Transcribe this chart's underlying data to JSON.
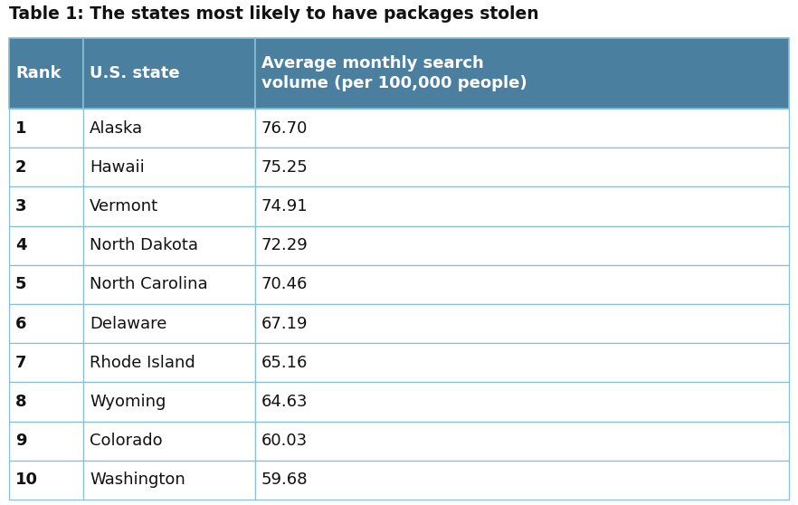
{
  "title": "Table 1: The states most likely to have packages stolen",
  "header": [
    "Rank",
    "U.S. state",
    "Average monthly search\nvolume (per 100,000 people)"
  ],
  "rows": [
    [
      "1",
      "Alaska",
      "76.70"
    ],
    [
      "2",
      "Hawaii",
      "75.25"
    ],
    [
      "3",
      "Vermont",
      "74.91"
    ],
    [
      "4",
      "North Dakota",
      "72.29"
    ],
    [
      "5",
      "North Carolina",
      "70.46"
    ],
    [
      "6",
      "Delaware",
      "67.19"
    ],
    [
      "7",
      "Rhode Island",
      "65.16"
    ],
    [
      "8",
      "Wyoming",
      "64.63"
    ],
    [
      "9",
      "Colorado",
      "60.03"
    ],
    [
      "10",
      "Washington",
      "59.68"
    ]
  ],
  "header_bg_color": "#4a7fa0",
  "header_text_color": "#ffffff",
  "row_bg_color": "#ffffff",
  "border_color": "#88bfd4",
  "title_color": "#111111",
  "row_text_color": "#111111",
  "title_fontsize": 13.5,
  "header_fontsize": 13.0,
  "row_fontsize": 13.0
}
